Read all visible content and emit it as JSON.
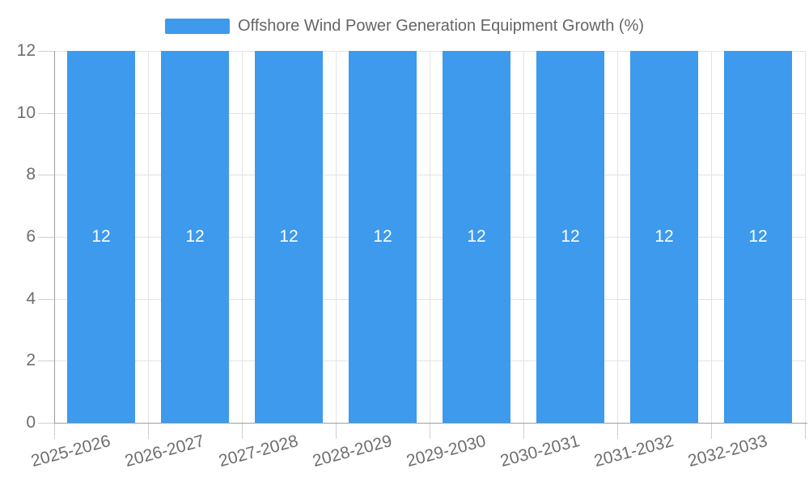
{
  "legend": {
    "label": "Offshore Wind Power Generation Equipment Growth (%)"
  },
  "chart_data": {
    "type": "bar",
    "title": "Offshore Wind Power Generation Equipment Growth (%)",
    "categories": [
      "2025-2026",
      "2026-2027",
      "2027-2028",
      "2028-2029",
      "2029-2030",
      "2030-2031",
      "2031-2032",
      "2032-2033"
    ],
    "values": [
      12,
      12,
      12,
      12,
      12,
      12,
      12,
      12
    ],
    "bar_labels": [
      "12",
      "12",
      "12",
      "12",
      "12",
      "12",
      "12",
      "12"
    ],
    "xlabel": "",
    "ylabel": "",
    "ylim": [
      0,
      12
    ],
    "y_ticks": [
      0,
      2,
      4,
      6,
      8,
      10,
      12
    ],
    "y_tick_labels": [
      "0",
      "2",
      "4",
      "6",
      "8",
      "10",
      "12"
    ],
    "grid": true,
    "legend_position": "top-center",
    "value_label_position": "inside-center",
    "colors": {
      "bar": "#3d9aec",
      "gridline": "#e3e3e3",
      "axis_line": "#9e9e9e",
      "tick_mark": "#cfcfcf",
      "axis_label_text": "#6e6e6e",
      "legend_text": "#666666",
      "value_label_text": "#ffffff",
      "background": "#ffffff"
    }
  }
}
